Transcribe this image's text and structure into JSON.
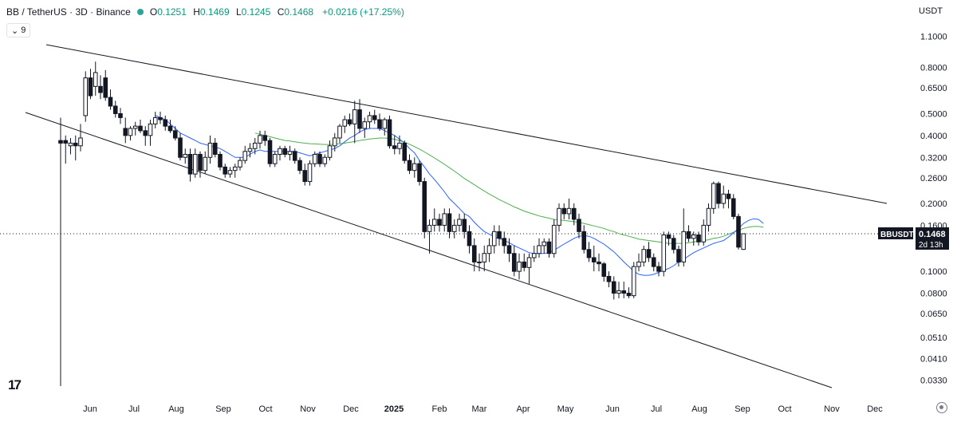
{
  "legend": {
    "symbol": "BB / TetherUS · 3D · Binance",
    "open_label": "O",
    "open": "0.1251",
    "high_label": "H",
    "high": "0.1469",
    "low_label": "L",
    "low": "0.1245",
    "close_label": "C",
    "close": "0.1468",
    "change": "+0.0216 (+17.25%)",
    "indicator_count": "9"
  },
  "currency": "USDT",
  "price_tag": {
    "symbol": "BBUSDT",
    "price": "0.1468",
    "countdown": "2d 13h"
  },
  "colors": {
    "up": "#ffffff",
    "down": "#131722",
    "wick": "#131722",
    "ma_fast": "#2962ff",
    "ma_slow": "#4caf50",
    "trendline": "#131722",
    "tag_bg": "#131722"
  },
  "chart_data": {
    "type": "candlestick",
    "scale": "log",
    "y_ticks": [
      "1.1000",
      "0.8000",
      "0.6500",
      "0.5000",
      "0.4000",
      "0.3200",
      "0.2600",
      "0.2000",
      "0.1600",
      "0.1000",
      "0.0800",
      "0.0650",
      "0.0510",
      "0.0410",
      "0.0330"
    ],
    "x_ticks": [
      "Jun",
      "Jul",
      "Aug",
      "Sep",
      "Oct",
      "Nov",
      "Dec",
      "2025",
      "Feb",
      "Mar",
      "Apr",
      "May",
      "Jun",
      "Jul",
      "Aug",
      "Sep",
      "Oct",
      "Nov",
      "Dec"
    ],
    "ylim": [
      0.031,
      1.17
    ],
    "candles": [
      [
        0.38,
        0.48,
        0.031,
        0.37
      ],
      [
        0.38,
        0.4,
        0.3,
        0.37
      ],
      [
        0.36,
        0.39,
        0.33,
        0.37
      ],
      [
        0.37,
        0.4,
        0.31,
        0.36
      ],
      [
        0.36,
        0.45,
        0.34,
        0.39
      ],
      [
        0.49,
        0.77,
        0.46,
        0.72
      ],
      [
        0.72,
        0.79,
        0.58,
        0.6
      ],
      [
        0.66,
        0.85,
        0.6,
        0.76
      ],
      [
        0.66,
        0.74,
        0.58,
        0.62
      ],
      [
        0.72,
        0.78,
        0.57,
        0.59
      ],
      [
        0.59,
        0.64,
        0.52,
        0.54
      ],
      [
        0.54,
        0.57,
        0.48,
        0.5
      ],
      [
        0.5,
        0.53,
        0.45,
        0.48
      ],
      [
        0.43,
        0.48,
        0.37,
        0.4
      ],
      [
        0.4,
        0.44,
        0.38,
        0.43
      ],
      [
        0.43,
        0.46,
        0.4,
        0.44
      ],
      [
        0.44,
        0.47,
        0.41,
        0.42
      ],
      [
        0.42,
        0.44,
        0.36,
        0.4
      ],
      [
        0.4,
        0.47,
        0.36,
        0.45
      ],
      [
        0.45,
        0.51,
        0.43,
        0.48
      ],
      [
        0.48,
        0.51,
        0.45,
        0.47
      ],
      [
        0.47,
        0.49,
        0.42,
        0.44
      ],
      [
        0.44,
        0.47,
        0.41,
        0.42
      ],
      [
        0.42,
        0.44,
        0.38,
        0.39
      ],
      [
        0.39,
        0.41,
        0.31,
        0.32
      ],
      [
        0.32,
        0.35,
        0.3,
        0.33
      ],
      [
        0.33,
        0.35,
        0.25,
        0.27
      ],
      [
        0.27,
        0.35,
        0.26,
        0.33
      ],
      [
        0.33,
        0.34,
        0.26,
        0.28
      ],
      [
        0.28,
        0.34,
        0.27,
        0.32
      ],
      [
        0.32,
        0.4,
        0.3,
        0.37
      ],
      [
        0.37,
        0.39,
        0.32,
        0.33
      ],
      [
        0.33,
        0.34,
        0.28,
        0.29
      ],
      [
        0.29,
        0.3,
        0.26,
        0.27
      ],
      [
        0.27,
        0.29,
        0.26,
        0.28
      ],
      [
        0.28,
        0.3,
        0.26,
        0.29
      ],
      [
        0.29,
        0.32,
        0.28,
        0.31
      ],
      [
        0.31,
        0.36,
        0.3,
        0.34
      ],
      [
        0.34,
        0.37,
        0.32,
        0.35
      ],
      [
        0.35,
        0.39,
        0.33,
        0.37
      ],
      [
        0.37,
        0.42,
        0.35,
        0.4
      ],
      [
        0.4,
        0.42,
        0.36,
        0.38
      ],
      [
        0.38,
        0.39,
        0.29,
        0.3
      ],
      [
        0.3,
        0.34,
        0.29,
        0.33
      ],
      [
        0.33,
        0.36,
        0.31,
        0.35
      ],
      [
        0.35,
        0.36,
        0.32,
        0.33
      ],
      [
        0.33,
        0.36,
        0.31,
        0.34
      ],
      [
        0.34,
        0.35,
        0.3,
        0.31
      ],
      [
        0.31,
        0.32,
        0.27,
        0.28
      ],
      [
        0.28,
        0.3,
        0.24,
        0.25
      ],
      [
        0.25,
        0.31,
        0.24,
        0.3
      ],
      [
        0.3,
        0.34,
        0.29,
        0.33
      ],
      [
        0.33,
        0.34,
        0.29,
        0.3
      ],
      [
        0.3,
        0.33,
        0.29,
        0.32
      ],
      [
        0.32,
        0.38,
        0.31,
        0.36
      ],
      [
        0.36,
        0.41,
        0.34,
        0.39
      ],
      [
        0.39,
        0.45,
        0.37,
        0.44
      ],
      [
        0.44,
        0.49,
        0.41,
        0.47
      ],
      [
        0.47,
        0.5,
        0.44,
        0.45
      ],
      [
        0.45,
        0.57,
        0.37,
        0.52
      ],
      [
        0.52,
        0.58,
        0.41,
        0.43
      ],
      [
        0.43,
        0.48,
        0.39,
        0.46
      ],
      [
        0.46,
        0.51,
        0.43,
        0.49
      ],
      [
        0.49,
        0.52,
        0.45,
        0.47
      ],
      [
        0.47,
        0.5,
        0.42,
        0.43
      ],
      [
        0.43,
        0.48,
        0.4,
        0.47
      ],
      [
        0.47,
        0.49,
        0.35,
        0.36
      ],
      [
        0.36,
        0.4,
        0.33,
        0.35
      ],
      [
        0.35,
        0.4,
        0.33,
        0.37
      ],
      [
        0.37,
        0.38,
        0.3,
        0.31
      ],
      [
        0.31,
        0.33,
        0.27,
        0.28
      ],
      [
        0.28,
        0.32,
        0.26,
        0.3
      ],
      [
        0.3,
        0.31,
        0.24,
        0.25
      ],
      [
        0.25,
        0.26,
        0.14,
        0.15
      ],
      [
        0.15,
        0.17,
        0.12,
        0.16
      ],
      [
        0.16,
        0.19,
        0.15,
        0.17
      ],
      [
        0.17,
        0.18,
        0.15,
        0.16
      ],
      [
        0.16,
        0.19,
        0.15,
        0.18
      ],
      [
        0.18,
        0.19,
        0.14,
        0.15
      ],
      [
        0.15,
        0.17,
        0.14,
        0.16
      ],
      [
        0.16,
        0.18,
        0.15,
        0.17
      ],
      [
        0.17,
        0.18,
        0.14,
        0.15
      ],
      [
        0.15,
        0.16,
        0.12,
        0.13
      ],
      [
        0.13,
        0.14,
        0.1,
        0.11
      ],
      [
        0.11,
        0.12,
        0.1,
        0.11
      ],
      [
        0.11,
        0.13,
        0.1,
        0.12
      ],
      [
        0.12,
        0.14,
        0.11,
        0.13
      ],
      [
        0.13,
        0.16,
        0.12,
        0.15
      ],
      [
        0.15,
        0.16,
        0.13,
        0.14
      ],
      [
        0.14,
        0.15,
        0.12,
        0.13
      ],
      [
        0.13,
        0.14,
        0.11,
        0.12
      ],
      [
        0.12,
        0.13,
        0.095,
        0.1
      ],
      [
        0.1,
        0.12,
        0.092,
        0.11
      ],
      [
        0.11,
        0.12,
        0.1,
        0.104
      ],
      [
        0.104,
        0.12,
        0.088,
        0.115
      ],
      [
        0.115,
        0.13,
        0.11,
        0.12
      ],
      [
        0.12,
        0.14,
        0.115,
        0.13
      ],
      [
        0.13,
        0.14,
        0.12,
        0.135
      ],
      [
        0.135,
        0.14,
        0.115,
        0.12
      ],
      [
        0.12,
        0.17,
        0.115,
        0.16
      ],
      [
        0.16,
        0.2,
        0.15,
        0.19
      ],
      [
        0.19,
        0.2,
        0.17,
        0.18
      ],
      [
        0.18,
        0.21,
        0.17,
        0.19
      ],
      [
        0.19,
        0.2,
        0.16,
        0.17
      ],
      [
        0.17,
        0.18,
        0.14,
        0.15
      ],
      [
        0.15,
        0.16,
        0.12,
        0.125
      ],
      [
        0.125,
        0.135,
        0.11,
        0.115
      ],
      [
        0.115,
        0.13,
        0.1,
        0.11
      ],
      [
        0.11,
        0.12,
        0.1,
        0.108
      ],
      [
        0.108,
        0.11,
        0.09,
        0.095
      ],
      [
        0.095,
        0.1,
        0.085,
        0.09
      ],
      [
        0.09,
        0.095,
        0.075,
        0.08
      ],
      [
        0.08,
        0.09,
        0.076,
        0.082
      ],
      [
        0.082,
        0.09,
        0.076,
        0.08
      ],
      [
        0.08,
        0.085,
        0.076,
        0.078
      ],
      [
        0.078,
        0.11,
        0.076,
        0.105
      ],
      [
        0.105,
        0.12,
        0.1,
        0.11
      ],
      [
        0.11,
        0.13,
        0.105,
        0.125
      ],
      [
        0.125,
        0.135,
        0.11,
        0.115
      ],
      [
        0.115,
        0.12,
        0.1,
        0.105
      ],
      [
        0.105,
        0.11,
        0.095,
        0.1
      ],
      [
        0.1,
        0.15,
        0.095,
        0.145
      ],
      [
        0.145,
        0.15,
        0.13,
        0.14
      ],
      [
        0.14,
        0.145,
        0.12,
        0.125
      ],
      [
        0.125,
        0.13,
        0.105,
        0.11
      ],
      [
        0.11,
        0.19,
        0.105,
        0.15
      ],
      [
        0.15,
        0.16,
        0.135,
        0.14
      ],
      [
        0.14,
        0.15,
        0.13,
        0.145
      ],
      [
        0.145,
        0.15,
        0.13,
        0.135
      ],
      [
        0.135,
        0.17,
        0.13,
        0.16
      ],
      [
        0.16,
        0.2,
        0.15,
        0.19
      ],
      [
        0.19,
        0.25,
        0.18,
        0.245
      ],
      [
        0.245,
        0.25,
        0.19,
        0.2
      ],
      [
        0.2,
        0.24,
        0.19,
        0.22
      ],
      [
        0.22,
        0.23,
        0.19,
        0.21
      ],
      [
        0.21,
        0.22,
        0.17,
        0.175
      ],
      [
        0.175,
        0.18,
        0.125,
        0.128
      ],
      [
        0.1251,
        0.1469,
        0.1245,
        0.1468
      ]
    ],
    "ma_fast": [
      null,
      null,
      null,
      null,
      null,
      null,
      null,
      null,
      null,
      null,
      null,
      null,
      null,
      null,
      null,
      null,
      null,
      null,
      null,
      0.49,
      0.48,
      0.47,
      0.45,
      0.43,
      0.41,
      0.4,
      0.39,
      0.38,
      0.37,
      0.365,
      0.36,
      0.355,
      0.35,
      0.34,
      0.33,
      0.32,
      0.32,
      0.32,
      0.33,
      0.34,
      0.345,
      0.34,
      0.34,
      0.34,
      0.34,
      0.34,
      0.34,
      0.34,
      0.335,
      0.33,
      0.325,
      0.33,
      0.335,
      0.34,
      0.345,
      0.35,
      0.36,
      0.375,
      0.39,
      0.4,
      0.415,
      0.425,
      0.43,
      0.43,
      0.43,
      0.42,
      0.41,
      0.4,
      0.385,
      0.37,
      0.35,
      0.335,
      0.31,
      0.29,
      0.27,
      0.255,
      0.24,
      0.225,
      0.21,
      0.2,
      0.19,
      0.18,
      0.175,
      0.165,
      0.157,
      0.15,
      0.146,
      0.142,
      0.14,
      0.137,
      0.134,
      0.13,
      0.127,
      0.124,
      0.121,
      0.12,
      0.12,
      0.12,
      0.121,
      0.124,
      0.128,
      0.132,
      0.136,
      0.14,
      0.143,
      0.144,
      0.143,
      0.14,
      0.136,
      0.132,
      0.127,
      0.122,
      0.116,
      0.11,
      0.105,
      0.1,
      0.097,
      0.096,
      0.096,
      0.097,
      0.099,
      0.101,
      0.103,
      0.106,
      0.11,
      0.113,
      0.117,
      0.121,
      0.124,
      0.127,
      0.13,
      0.133,
      0.135,
      0.137,
      0.142,
      0.148,
      0.155,
      0.163,
      0.168,
      0.171,
      0.17,
      0.163
    ],
    "ma_slow": [
      null,
      null,
      null,
      null,
      null,
      null,
      null,
      null,
      null,
      null,
      null,
      null,
      null,
      null,
      null,
      null,
      null,
      null,
      null,
      null,
      null,
      null,
      null,
      null,
      null,
      null,
      null,
      null,
      null,
      null,
      null,
      null,
      null,
      null,
      null,
      null,
      null,
      null,
      null,
      0.41,
      0.405,
      0.4,
      0.395,
      0.39,
      0.385,
      0.38,
      0.378,
      0.375,
      0.372,
      0.37,
      0.368,
      0.367,
      0.366,
      0.365,
      0.365,
      0.366,
      0.368,
      0.37,
      0.373,
      0.376,
      0.38,
      0.383,
      0.386,
      0.388,
      0.39,
      0.39,
      0.388,
      0.385,
      0.38,
      0.373,
      0.366,
      0.357,
      0.348,
      0.338,
      0.328,
      0.318,
      0.308,
      0.298,
      0.288,
      0.278,
      0.268,
      0.258,
      0.25,
      0.242,
      0.234,
      0.227,
      0.22,
      0.214,
      0.208,
      0.203,
      0.198,
      0.193,
      0.189,
      0.185,
      0.182,
      0.179,
      0.176,
      0.174,
      0.172,
      0.17,
      0.169,
      0.168,
      0.167,
      0.166,
      0.165,
      0.163,
      0.161,
      0.159,
      0.157,
      0.155,
      0.152,
      0.15,
      0.147,
      0.145,
      0.143,
      0.141,
      0.139,
      0.138,
      0.137,
      0.136,
      0.135,
      0.134,
      0.133,
      0.133,
      0.133,
      0.133,
      0.134,
      0.135,
      0.136,
      0.137,
      0.138,
      0.14,
      0.141,
      0.143,
      0.146,
      0.149,
      0.152,
      0.155,
      0.157,
      0.158,
      0.158,
      0.157
    ]
  }
}
